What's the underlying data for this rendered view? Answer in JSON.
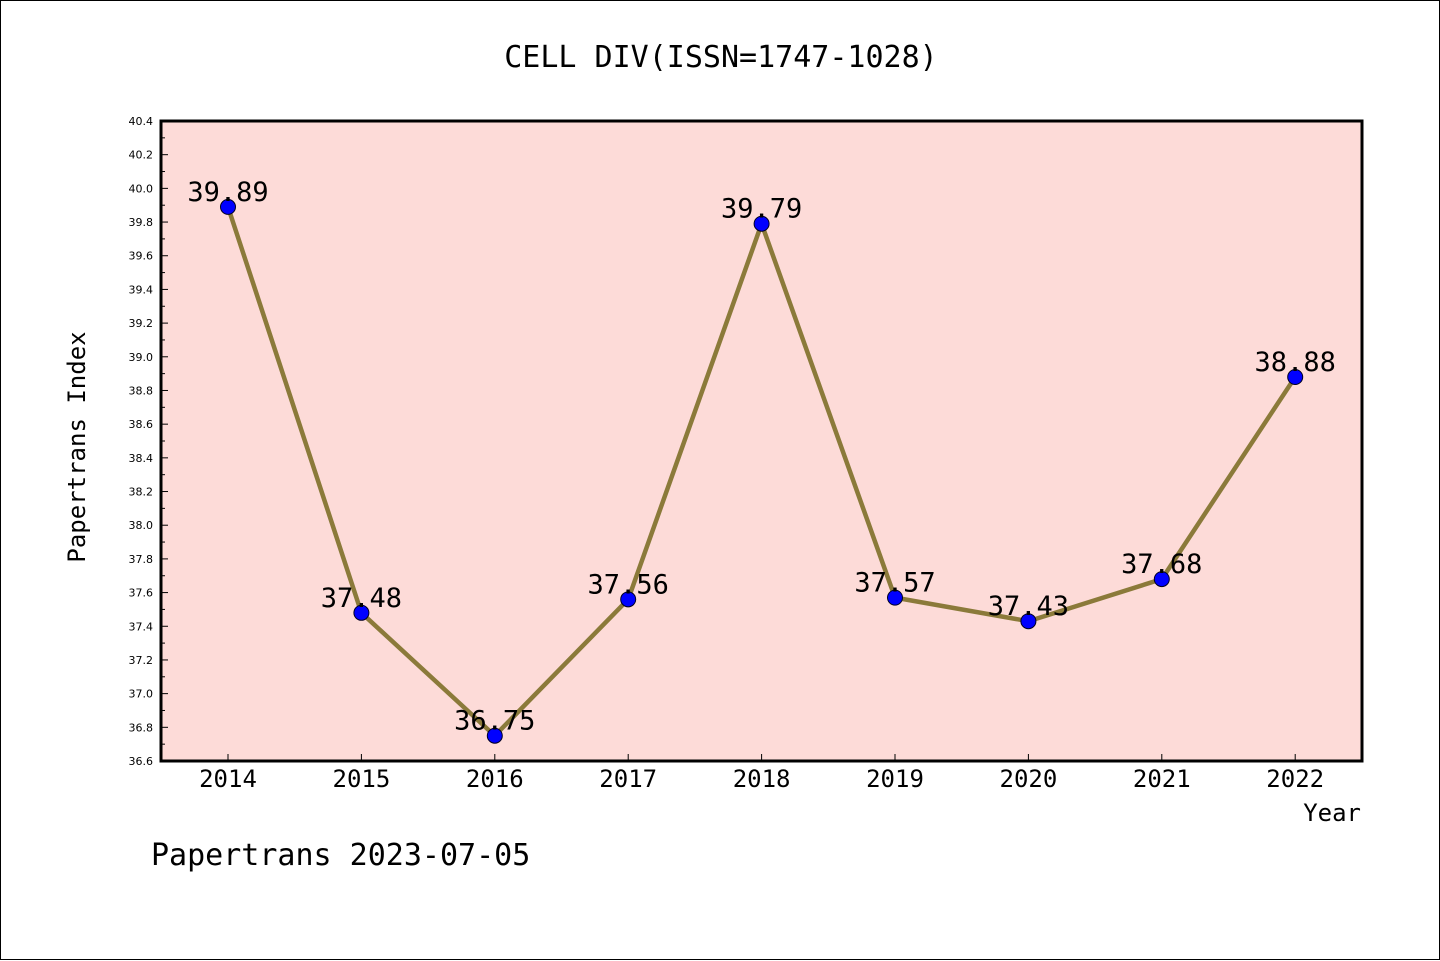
{
  "chart_data": {
    "type": "line",
    "title": "CELL DIV(ISSN=1747-1028)",
    "xlabel": "Year",
    "ylabel": "Papertrans Index",
    "categories": [
      "2014",
      "2015",
      "2016",
      "2017",
      "2018",
      "2019",
      "2020",
      "2021",
      "2022"
    ],
    "series": [
      {
        "values": [
          39.89,
          37.48,
          36.75,
          37.56,
          39.79,
          37.57,
          37.43,
          37.68,
          38.88
        ],
        "labels": [
          "39.89",
          "37.48",
          "36.75",
          "37.56",
          "39.79",
          "37.57",
          "37.43",
          "37.68",
          "38.88"
        ]
      }
    ],
    "ylim": [
      36.6,
      40.4
    ],
    "yticks": [
      "36.6",
      "36.8",
      "37.0",
      "37.2",
      "37.4",
      "37.6",
      "37.8",
      "38.0",
      "38.2",
      "38.4",
      "38.6",
      "38.8",
      "39.0",
      "39.2",
      "39.4",
      "39.6",
      "39.8",
      "40.0",
      "40.2",
      "40.4"
    ],
    "grid": false,
    "colors": {
      "plot_background": "#fddbd8",
      "line": "#8b7a3a",
      "marker": "#0000ff"
    }
  },
  "footer": "Papertrans 2023-07-05"
}
